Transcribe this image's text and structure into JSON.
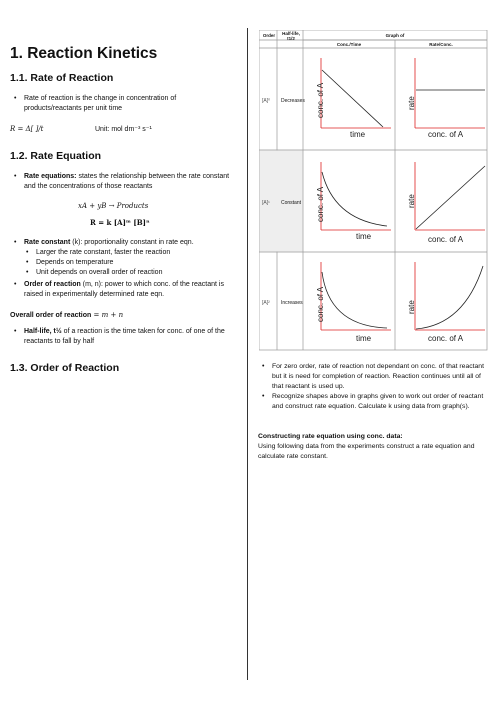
{
  "left": {
    "title": "1. Reaction Kinetics",
    "s1": "1.1. Rate of Reaction",
    "s1_b1": "Rate of reaction is the change in concentration of products/reactants per unit time",
    "s1_eq": "R = Δ[ ]/t",
    "s1_unit": "Unit: mol dm⁻³ s⁻¹",
    "s2": "1.2. Rate Equation",
    "s2_b1_bold": "Rate equations:",
    "s2_b1": " states the relationship between the rate constant and the concentrations of those reactants",
    "s2_eq1": "xA + yB → Products",
    "s2_eq2": "R = k [A]ᵐ [B]ⁿ",
    "s2_b2_bold": "Rate constant",
    "s2_b2": " (k): proportionality constant in rate eqn.",
    "s2_sub1": "Larger the rate constant, faster the reaction",
    "s2_sub2": "Depends on temperature",
    "s2_sub3": "Unit depends on overall order of reaction",
    "s2_b3_bold": "Order of reaction",
    "s2_b3": " (m, n): power to which conc. of the reactant is raised in experimentally determined rate eqn.",
    "s2_overall_bold": "Overall order of reaction",
    "s2_overall": " = m + n",
    "s2_b4_bold": "Half-life, t½",
    "s2_b4": " of a reaction is the time taken for conc. of one of the reactants to fall by half",
    "s3": "1.3. Order of Reaction"
  },
  "table": {
    "h_order": "Order",
    "h_half": "Half-life, t1/2",
    "h_graph": "Graph of",
    "h_conc": "Conc./Time",
    "h_rate": "Rate/Conc.",
    "rows": [
      {
        "order": "[A]⁰",
        "half": "Decreases"
      },
      {
        "order": "[A]¹",
        "half": "Constant"
      },
      {
        "order": "[A]²",
        "half": "Increases"
      }
    ],
    "x_time": "time",
    "y_conc": "conc. of A",
    "x_conc": "conc. of A",
    "y_rate": "rate"
  },
  "right": {
    "b1": "For zero order, rate of reaction not dependant on conc. of that reactant but it is need for completion of reaction. Reaction continues until all of that reactant is used up.",
    "b2": "Recognize shapes above in graphs given to work out order of reactant and construct rate equation. Calculate k using data from graph(s).",
    "h": "Constructing rate equation using conc. data:",
    "p": "Using following data from the experiments construct a rate equation and calculate rate constant."
  }
}
